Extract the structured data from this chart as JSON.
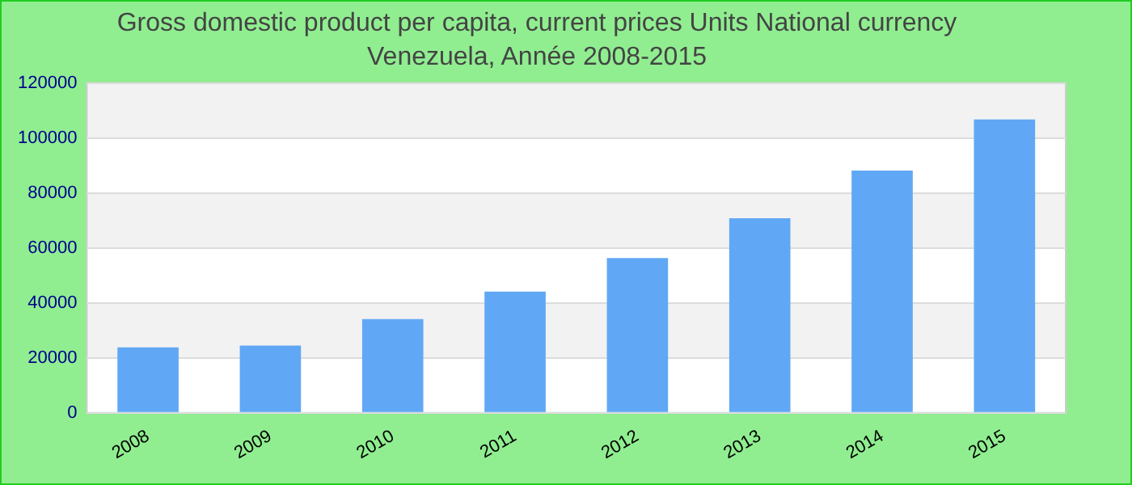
{
  "chart_data": {
    "type": "bar",
    "title": "Gross domestic product per capita, current prices Units National currency",
    "subtitle": "Venezuela, Année 2008-2015",
    "categories": [
      "2008",
      "2009",
      "2010",
      "2011",
      "2012",
      "2013",
      "2014",
      "2015"
    ],
    "values": [
      23800,
      24500,
      34100,
      44100,
      56300,
      70800,
      88200,
      106800
    ],
    "color": "#60a8f5",
    "ylim": [
      0,
      120000
    ],
    "yticks": [
      0,
      20000,
      40000,
      60000,
      80000,
      100000,
      120000
    ],
    "grid": "y"
  }
}
